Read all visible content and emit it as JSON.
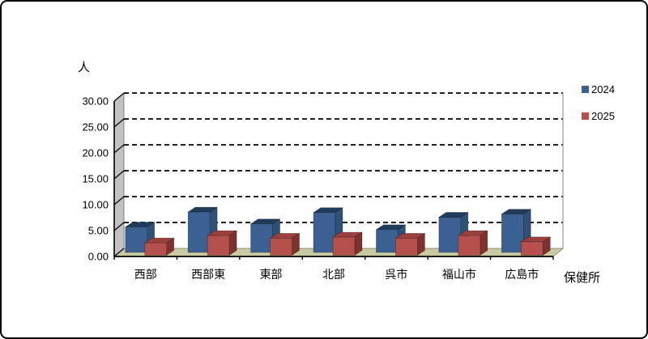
{
  "chart_data": {
    "type": "bar",
    "style": "3d-clustered-column",
    "title": "",
    "xlabel": "保健所",
    "ylabel": "人",
    "categories": [
      "西部",
      "西部東",
      "東部",
      "北部",
      "呉市",
      "福山市",
      "広島市"
    ],
    "series": [
      {
        "name": "2024",
        "values": [
          4.9,
          7.8,
          5.5,
          7.7,
          4.4,
          6.8,
          7.4
        ],
        "colors": {
          "front": "#3A6191",
          "top": "#203C5C",
          "side": "#2F5178"
        }
      },
      {
        "name": "2025",
        "values": [
          2.4,
          3.8,
          3.3,
          3.5,
          3.3,
          3.8,
          2.6
        ],
        "colors": {
          "front": "#B5504C",
          "top": "#9B403D",
          "side": "#7E322F"
        }
      }
    ],
    "ylim": [
      0,
      30
    ],
    "ytick_step": 5,
    "ytick_labels": [
      "0.00",
      "5.00",
      "10.00",
      "15.00",
      "20.00",
      "25.00",
      "30.00"
    ],
    "grid": "horizontal-dashed",
    "legend_position": "top-right"
  },
  "colors": {
    "wall": "#C2C2C2",
    "floor": "#C9C9A2",
    "floor_edge": "#7A7A5E",
    "gridline": "#000000",
    "axis": "#000000",
    "plot_right_edge": "#9A9A9A",
    "background": "#FFFFFF",
    "border": "#000000"
  }
}
